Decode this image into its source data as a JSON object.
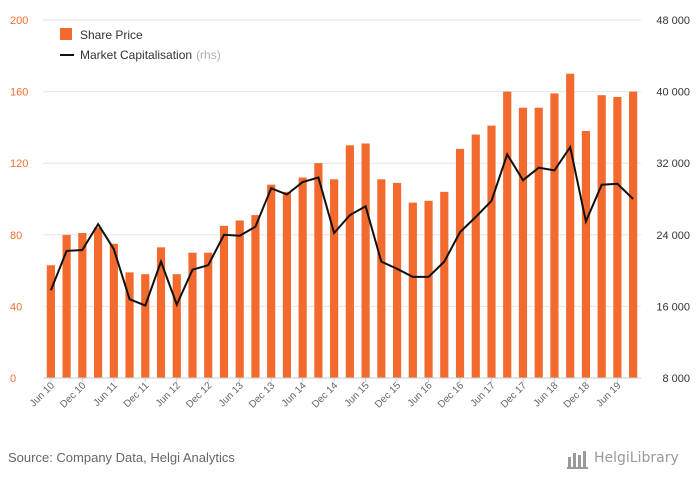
{
  "chart_data": {
    "type": "bar",
    "categories": [
      "Jun 10",
      "Sep 10",
      "Dec 10",
      "Mar 11",
      "Jun 11",
      "Sep 11",
      "Dec 11",
      "Mar 12",
      "Jun 12",
      "Sep 12",
      "Dec 12",
      "Mar 13",
      "Jun 13",
      "Sep 13",
      "Dec 13",
      "Mar 14",
      "Jun 14",
      "Sep 14",
      "Dec 14",
      "Mar 15",
      "Jun 15",
      "Sep 15",
      "Dec 15",
      "Mar 16",
      "Jun 16",
      "Sep 16",
      "Dec 16",
      "Mar 17",
      "Jun 17",
      "Sep 17",
      "Dec 17",
      "Mar 18",
      "Jun 18",
      "Sep 18",
      "Dec 18",
      "Mar 19",
      "Jun 19",
      "Sep 19"
    ],
    "x_tick_labels": [
      "Jun 10",
      "Dec 10",
      "Jun 11",
      "Dec 11",
      "Jun 12",
      "Dec 12",
      "Jun 13",
      "Dec 13",
      "Jun 14",
      "Dec 14",
      "Jun 15",
      "Dec 15",
      "Jun 16",
      "Dec 16",
      "Jun 17",
      "Dec 17",
      "Jun 18",
      "Dec 18",
      "Jun 19"
    ],
    "series": [
      {
        "name": "Share Price",
        "type": "bar",
        "axis": "left",
        "color": "#f26a2e",
        "values": [
          63,
          80,
          81,
          84,
          75,
          59,
          58,
          73,
          58,
          70,
          70,
          85,
          88,
          91,
          108,
          104,
          112,
          120,
          111,
          130,
          131,
          111,
          109,
          98,
          99,
          104,
          128,
          136,
          141,
          160,
          151,
          151,
          159,
          170,
          138,
          158,
          157,
          160
        ]
      },
      {
        "name": "Market Capitalisation",
        "name_note": "(rhs)",
        "type": "line",
        "axis": "right",
        "color": "#111111",
        "values": [
          17800,
          22200,
          22300,
          25200,
          22400,
          16800,
          16100,
          21000,
          16200,
          20100,
          20600,
          24000,
          23900,
          24900,
          29200,
          28500,
          29900,
          30400,
          24200,
          26200,
          27200,
          21000,
          20200,
          19300,
          19300,
          21000,
          24300,
          26000,
          27800,
          33000,
          30100,
          31500,
          31200,
          33800,
          25500,
          29600,
          29700,
          28000
        ]
      }
    ],
    "y_left": {
      "ticks": [
        "0",
        "40",
        "80",
        "120",
        "160",
        "200"
      ],
      "lim": [
        0,
        200
      ]
    },
    "y_right": {
      "ticks": [
        "8 000",
        "16 000",
        "24 000",
        "32 000",
        "40 000",
        "48 000"
      ],
      "lim": [
        8000,
        48000
      ]
    },
    "grid": true,
    "legend_placement": "top-left"
  },
  "footer": {
    "source": "Source: Company Data, Helgi Analytics",
    "brand": "HelgiLibrary",
    "brand_icon": "helgi-library-logo-icon"
  }
}
